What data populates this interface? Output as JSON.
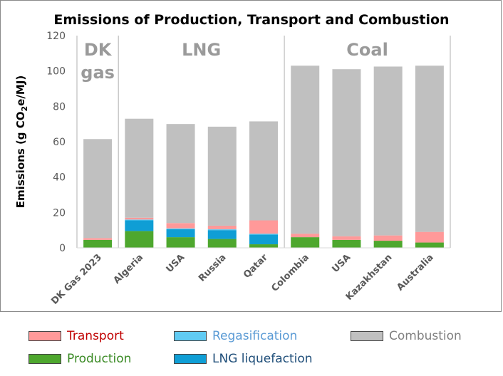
{
  "chart_data": {
    "type": "bar",
    "stacked": true,
    "title": "Emissions of Production, Transport and Combustion",
    "ylabel_main": "Emissions (g CO",
    "ylabel_sub": "2",
    "ylabel_tail": "e/MJ)",
    "ylim": [
      0,
      120
    ],
    "yticks": [
      "0",
      "20",
      "40",
      "60",
      "80",
      "100",
      "120"
    ],
    "grid": false,
    "legend_position": "bottom",
    "groups": [
      {
        "label": "DK",
        "label2": "gas"
      },
      {
        "label": "LNG",
        "label2": ""
      },
      {
        "label": "Coal",
        "label2": ""
      }
    ],
    "categories": [
      "DK Gas 2023",
      "Algeria",
      "USA",
      "Russia",
      "Qatar",
      "Colombia",
      "USA",
      "Kazakhstan",
      "Australia"
    ],
    "series": [
      {
        "name": "Production",
        "color": "#4ea72e",
        "values": [
          4.5,
          9.5,
          6,
          5,
          2,
          6,
          4.5,
          4,
          3
        ]
      },
      {
        "name": "LNG liquefaction",
        "color": "#0f9ed5",
        "values": [
          0,
          6,
          4.5,
          5,
          5.5,
          0,
          0,
          0,
          0
        ]
      },
      {
        "name": "Regasification",
        "color": "#61cbf3",
        "values": [
          0,
          0.5,
          0.5,
          0.5,
          0.5,
          0,
          0,
          0,
          0
        ]
      },
      {
        "name": "Transport",
        "color": "#ff9999",
        "values": [
          1,
          1,
          3,
          2,
          7.5,
          2,
          2,
          3,
          6
        ]
      },
      {
        "name": "Combustion",
        "color": "#c0c0c0",
        "values": [
          56,
          56,
          56,
          56,
          56,
          95,
          94.5,
          95.5,
          94
        ]
      }
    ],
    "legend": [
      {
        "name": "Transport",
        "color": "#ff9999",
        "text_color": "#c00000"
      },
      {
        "name": "Regasification",
        "color": "#61cbf3",
        "text_color": "#5b9bd5"
      },
      {
        "name": "Combustion",
        "color": "#c0c0c0",
        "text_color": "#808080"
      },
      {
        "name": "Production",
        "color": "#4ea72e",
        "text_color": "#3a8a24"
      },
      {
        "name": "LNG liquefaction",
        "color": "#0f9ed5",
        "text_color": "#1f4e79"
      }
    ]
  }
}
